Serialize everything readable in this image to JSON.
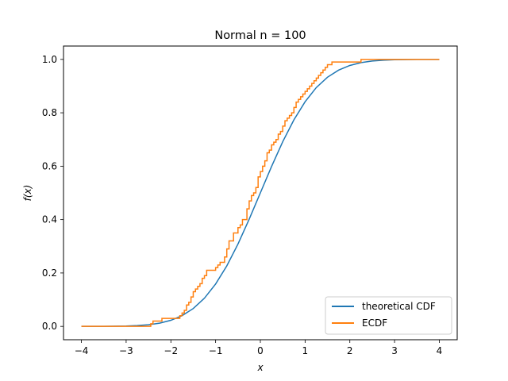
{
  "chart_data": {
    "type": "line",
    "title": "Normal n = 100",
    "xlabel": "x",
    "ylabel": "f(x)",
    "xlim": [
      -4.4,
      4.4
    ],
    "ylim": [
      -0.05,
      1.05
    ],
    "xticks": [
      -4,
      -3,
      -2,
      -1,
      0,
      1,
      2,
      3,
      4
    ],
    "xtick_labels": [
      "−4",
      "−3",
      "−2",
      "−1",
      "0",
      "1",
      "2",
      "3",
      "4"
    ],
    "yticks": [
      0.0,
      0.2,
      0.4,
      0.6,
      0.8,
      1.0
    ],
    "ytick_labels": [
      "0.0",
      "0.2",
      "0.4",
      "0.6",
      "0.8",
      "1.0"
    ],
    "grid": false,
    "legend_position": "lower-right",
    "series": [
      {
        "name": "theoretical CDF",
        "color": "#1f77b4",
        "style": "line",
        "x": [
          -4,
          -3.5,
          -3,
          -2.75,
          -2.5,
          -2.25,
          -2,
          -1.75,
          -1.5,
          -1.25,
          -1,
          -0.75,
          -0.5,
          -0.25,
          0,
          0.25,
          0.5,
          0.75,
          1,
          1.25,
          1.5,
          1.75,
          2,
          2.25,
          2.5,
          2.75,
          3,
          3.5,
          4
        ],
        "y": [
          3e-05,
          0.0002,
          0.0013,
          0.003,
          0.0062,
          0.0122,
          0.0228,
          0.0401,
          0.0668,
          0.1056,
          0.1587,
          0.2266,
          0.3085,
          0.4013,
          0.5,
          0.5987,
          0.6915,
          0.7734,
          0.8413,
          0.8944,
          0.9332,
          0.9599,
          0.9772,
          0.9878,
          0.9938,
          0.997,
          0.9987,
          0.9998,
          1.0
        ]
      },
      {
        "name": "ECDF",
        "color": "#ff7f0e",
        "style": "step",
        "x": [
          -4,
          -2.45,
          -2.4,
          -2.2,
          -1.8,
          -1.75,
          -1.7,
          -1.65,
          -1.6,
          -1.55,
          -1.5,
          -1.45,
          -1.4,
          -1.35,
          -1.3,
          -1.25,
          -1.2,
          -1.0,
          -0.95,
          -0.9,
          -0.8,
          -0.75,
          -0.7,
          -0.6,
          -0.5,
          -0.45,
          -0.4,
          -0.3,
          -0.25,
          -0.2,
          -0.15,
          -0.1,
          -0.05,
          0,
          0.05,
          0.1,
          0.15,
          0.2,
          0.25,
          0.3,
          0.35,
          0.4,
          0.45,
          0.5,
          0.55,
          0.6,
          0.65,
          0.7,
          0.75,
          0.8,
          0.85,
          0.9,
          0.95,
          1.0,
          1.05,
          1.1,
          1.15,
          1.2,
          1.25,
          1.3,
          1.35,
          1.4,
          1.45,
          1.5,
          1.6,
          1.7,
          1.8,
          1.9,
          2.0,
          2.1,
          2.2,
          2.25,
          4
        ],
        "y": [
          0.0,
          0.01,
          0.02,
          0.03,
          0.04,
          0.05,
          0.06,
          0.08,
          0.09,
          0.11,
          0.13,
          0.14,
          0.15,
          0.16,
          0.18,
          0.19,
          0.21,
          0.22,
          0.23,
          0.24,
          0.26,
          0.29,
          0.32,
          0.35,
          0.37,
          0.38,
          0.4,
          0.44,
          0.47,
          0.49,
          0.5,
          0.52,
          0.56,
          0.58,
          0.6,
          0.62,
          0.65,
          0.66,
          0.68,
          0.69,
          0.7,
          0.72,
          0.73,
          0.75,
          0.77,
          0.78,
          0.79,
          0.8,
          0.82,
          0.84,
          0.85,
          0.86,
          0.87,
          0.88,
          0.89,
          0.9,
          0.91,
          0.92,
          0.93,
          0.94,
          0.95,
          0.96,
          0.97,
          0.98,
          0.99,
          0.99,
          0.99,
          0.99,
          0.99,
          0.99,
          0.99,
          1.0,
          1.0
        ]
      }
    ]
  }
}
